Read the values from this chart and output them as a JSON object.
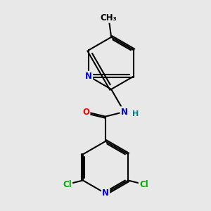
{
  "bg_color": "#e8e8e8",
  "bond_color": "#000000",
  "bond_width": 1.5,
  "atom_colors": {
    "N": "#0000cc",
    "O": "#ff0000",
    "Cl": "#00aa00",
    "C": "#000000",
    "H": "#008080"
  },
  "font_size_atom": 8.5
}
